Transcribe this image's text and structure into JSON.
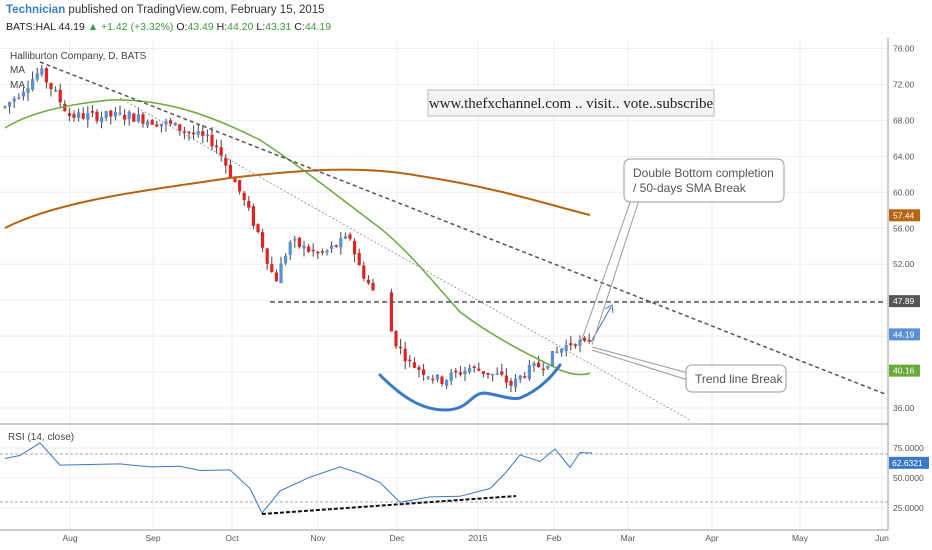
{
  "header": {
    "author": "Technician",
    "published_text": "published on TradingView.com, February 15, 2015",
    "symbol": "BATS:HAL",
    "last": "44.19",
    "change": "▲ +1.42 (+3.32%)",
    "o_label": "O:",
    "o_value": "43.49",
    "h_label": "H:",
    "h_value": "44.20",
    "l_label": "L:",
    "l_value": "43.31",
    "c_label": "C:",
    "c_value": "44.19"
  },
  "colors": {
    "bull": "#5b8fd6",
    "bear": "#e02424",
    "ma_short": "#6aaa3c",
    "ma_long": "#b8630f",
    "trend": "#555555",
    "pattern": "#3a78c8",
    "rsi": "#3a78c8",
    "grid": "#eeeeee"
  },
  "chart_data": [
    {
      "type": "candlestick",
      "title": "Halliburton Company, D, BATS",
      "legend": [
        "MA",
        "MA"
      ],
      "x": [
        "Aug",
        "Sep",
        "Oct",
        "Nov",
        "Dec",
        "2015",
        "Feb",
        "Mar",
        "Apr",
        "May",
        "Jun"
      ],
      "y_ticks": [
        "76.00",
        "72.00",
        "68.00",
        "64.00",
        "60.00",
        "56.00",
        "52.00",
        "48.00",
        "44.00",
        "40.00",
        "36.00"
      ],
      "ylim": [
        35,
        76.5
      ],
      "price_badges": [
        {
          "value": "57.44",
          "color": "#b8630f"
        },
        {
          "value": "47.89",
          "color": "#555555"
        },
        {
          "value": "44.19",
          "color": "#5b8fd6"
        },
        {
          "value": "40.16",
          "color": "#6aaa3c"
        }
      ],
      "annotations": {
        "watermark": "www.thefxchannel.com .. visit.. vote..subscribe",
        "callout_1": [
          "Double Bottom completion",
          "/ 50-days SMA Break"
        ],
        "callout_2": "Trend line Break"
      },
      "support_level": 47.89,
      "grid": true
    },
    {
      "type": "line",
      "title": "RSI (14, close)",
      "y_ticks": [
        "75.0000",
        "50.0000",
        "25.0000"
      ],
      "ylim": [
        15,
        85
      ],
      "last_badge": "62.6321",
      "guides": [
        70,
        30
      ],
      "grid": true
    }
  ]
}
